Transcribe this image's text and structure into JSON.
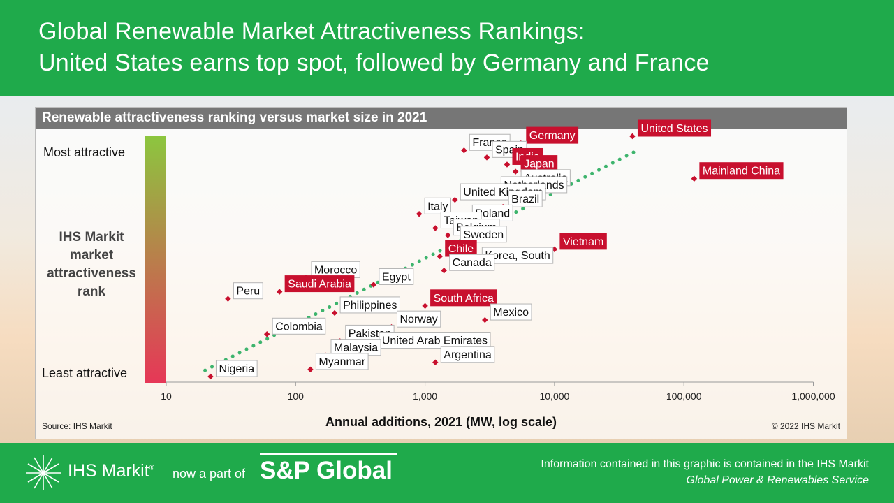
{
  "header": {
    "title_line1": "Global Renewable Market Attractiveness Rankings:",
    "title_line2": "United States earns top spot, followed by Germany and France"
  },
  "colors": {
    "brand_green": "#1faa4b",
    "highlight_red": "#c8102e",
    "trend_green": "#3db46d",
    "marker_red": "#c8102e"
  },
  "chart_data": {
    "type": "scatter",
    "title": "Renewable attractiveness ranking versus market size in 2021",
    "xlabel": "Annual additions, 2021 (MW, log scale)",
    "ylabel": "IHS Markit market attractiveness rank",
    "x_scale": "log",
    "xlim": [
      10,
      1000000
    ],
    "x_ticks": [
      "10",
      "100",
      "1,000",
      "10,000",
      "100,000",
      "1,000,000"
    ],
    "y_scale_labels": {
      "top": "Most attractive",
      "bottom": "Least attractive"
    },
    "trendline": true,
    "points": [
      {
        "name": "United States",
        "x": 40000,
        "rank": 1,
        "highlight": true
      },
      {
        "name": "Germany",
        "x": 5500,
        "rank": 2,
        "highlight": true
      },
      {
        "name": "France",
        "x": 2000,
        "rank": 3,
        "highlight": false
      },
      {
        "name": "Spain",
        "x": 3000,
        "rank": 4,
        "highlight": false
      },
      {
        "name": "India",
        "x": 4300,
        "rank": 5,
        "highlight": true
      },
      {
        "name": "Japan",
        "x": 5000,
        "rank": 6,
        "highlight": true
      },
      {
        "name": "Mainland China",
        "x": 120000,
        "rank": 7,
        "highlight": true
      },
      {
        "name": "Australia",
        "x": 5000,
        "rank": 8,
        "highlight": false
      },
      {
        "name": "Netherlands",
        "x": 3500,
        "rank": 9,
        "highlight": false
      },
      {
        "name": "United Kingdom",
        "x": 1700,
        "rank": 10,
        "highlight": false
      },
      {
        "name": "Brazil",
        "x": 4000,
        "rank": 11,
        "highlight": false
      },
      {
        "name": "Italy",
        "x": 900,
        "rank": 12,
        "highlight": false
      },
      {
        "name": "Poland",
        "x": 2100,
        "rank": 13,
        "highlight": false
      },
      {
        "name": "Taiwan",
        "x": 1200,
        "rank": 14,
        "highlight": false
      },
      {
        "name": "Belgium",
        "x": 1500,
        "rank": 15,
        "highlight": false
      },
      {
        "name": "Sweden",
        "x": 1700,
        "rank": 16,
        "highlight": false
      },
      {
        "name": "Vietnam",
        "x": 10000,
        "rank": 17,
        "highlight": true
      },
      {
        "name": "Chile",
        "x": 1300,
        "rank": 18,
        "highlight": true
      },
      {
        "name": "Korea, South",
        "x": 2500,
        "rank": 19,
        "highlight": false
      },
      {
        "name": "Canada",
        "x": 1400,
        "rank": 20,
        "highlight": false
      },
      {
        "name": "Morocco",
        "x": 120,
        "rank": 21,
        "highlight": false
      },
      {
        "name": "Egypt",
        "x": 400,
        "rank": 22,
        "highlight": false
      },
      {
        "name": "Saudi Arabia",
        "x": 75,
        "rank": 23,
        "highlight": true
      },
      {
        "name": "Peru",
        "x": 30,
        "rank": 24,
        "highlight": false
      },
      {
        "name": "South Africa",
        "x": 1000,
        "rank": 25,
        "highlight": true
      },
      {
        "name": "Philippines",
        "x": 200,
        "rank": 26,
        "highlight": false
      },
      {
        "name": "Mexico",
        "x": 2900,
        "rank": 27,
        "highlight": false
      },
      {
        "name": "Norway",
        "x": 550,
        "rank": 28,
        "highlight": false
      },
      {
        "name": "Colombia",
        "x": 60,
        "rank": 29,
        "highlight": false
      },
      {
        "name": "Pakistan",
        "x": 220,
        "rank": 30,
        "highlight": false
      },
      {
        "name": "United Arab Emirates",
        "x": 400,
        "rank": 31,
        "highlight": false
      },
      {
        "name": "Malaysia",
        "x": 170,
        "rank": 32,
        "highlight": false
      },
      {
        "name": "Argentina",
        "x": 1200,
        "rank": 33,
        "highlight": false
      },
      {
        "name": "Myanmar",
        "x": 130,
        "rank": 34,
        "highlight": false
      },
      {
        "name": "Nigeria",
        "x": 22,
        "rank": 35,
        "highlight": false
      }
    ]
  },
  "source": "Source: IHS Markit",
  "copyright": "© 2022 IHS Markit",
  "footer": {
    "logo_ihs": "IHS Markit",
    "logo_now": "now a part of",
    "logo_sp": "S&P Global",
    "info_line1": "Information contained in this graphic is contained in the IHS Markit",
    "info_line2": "Global Power & Renewables Service"
  }
}
